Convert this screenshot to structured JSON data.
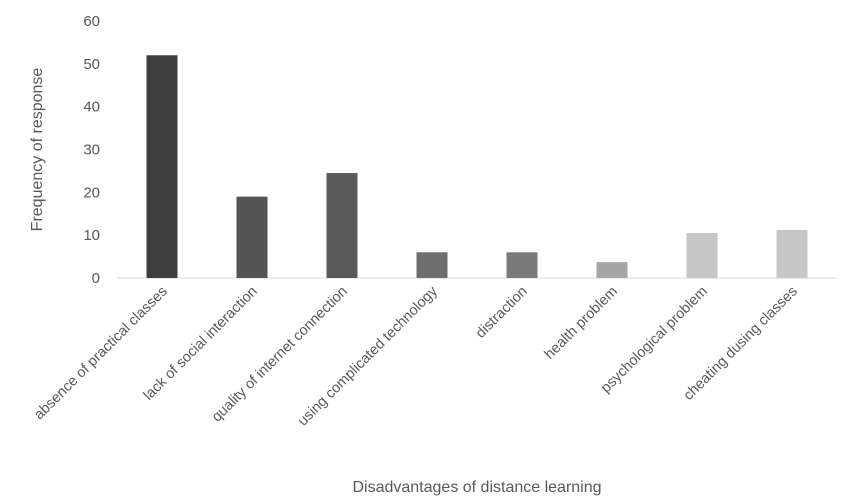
{
  "chart_data": {
    "type": "bar",
    "title": "",
    "xlabel": "Disadvantages of distance learning",
    "ylabel": "Frequency of response",
    "ylim": [
      0,
      60
    ],
    "yticks": [
      0,
      10,
      20,
      30,
      40,
      50,
      60
    ],
    "grid": false,
    "legend": "none",
    "categories": [
      "absence of practical classes",
      "lack of social interaction",
      "quality of internet connection",
      "using complicated technology",
      "distraction",
      "health problem",
      "psychological problem",
      "cheating dusing classes"
    ],
    "values": [
      52,
      19,
      24.5,
      6,
      6,
      3.7,
      10.5,
      11.2
    ],
    "colors": [
      "#3f3f3f",
      "#545454",
      "#595959",
      "#6e6e6e",
      "#7a7a7a",
      "#a6a6a6",
      "#c6c6c6",
      "#c6c6c6"
    ],
    "axis_color": "#d9d9d9",
    "text_color": "#595959"
  }
}
